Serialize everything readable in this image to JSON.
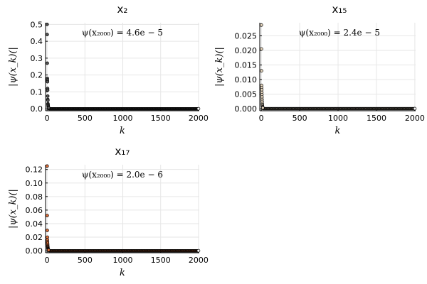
{
  "chart_data": [
    {
      "type": "scatter",
      "title": "x₂",
      "xlabel": "k",
      "ylabel": "|ψ(x_k)(|",
      "annotation": "ψ(x₂₀₀₀) = 4.6e − 5",
      "xlim": [
        -20,
        2010
      ],
      "ylim": [
        -0.012,
        0.51
      ],
      "xticks": [
        0,
        500,
        1000,
        1500,
        2000
      ],
      "xtick_labels": [
        "0",
        "500",
        "1000",
        "1500",
        "2000"
      ],
      "yticks": [
        0.0,
        0.1,
        0.2,
        0.3,
        0.4,
        0.5
      ],
      "ytick_labels": [
        "0.0",
        "0.1",
        "0.2",
        "0.3",
        "0.4",
        "0.5"
      ],
      "grid": true,
      "marker_color": "#555555",
      "highlight_points": [
        [
          1,
          0.5
        ],
        [
          2,
          0.44
        ],
        [
          3,
          0.27
        ],
        [
          4,
          0.18
        ],
        [
          5,
          0.17
        ],
        [
          6,
          0.16
        ],
        [
          7,
          0.12
        ],
        [
          8,
          0.11
        ],
        [
          9,
          0.075
        ],
        [
          10,
          0.055
        ],
        [
          11,
          0.05
        ],
        [
          12,
          0.03
        ],
        [
          13,
          0.025
        ],
        [
          14,
          0.02
        ],
        [
          15,
          0.015
        ],
        [
          16,
          0.01
        ],
        [
          18,
          0.008
        ],
        [
          20,
          0.006
        ]
      ],
      "tail_start": 22,
      "tail_end": 2000,
      "tail_value": 5e-05
    },
    {
      "type": "scatter",
      "title": "x₁₅",
      "xlabel": "k",
      "ylabel": "|ψ(x_k)(|",
      "annotation": "ψ(x₂₀₀₀) = 2.4e − 5",
      "xlim": [
        -20,
        2010
      ],
      "ylim": [
        -0.0007,
        0.0295
      ],
      "xticks": [
        0,
        500,
        1000,
        1500,
        2000
      ],
      "xtick_labels": [
        "0",
        "500",
        "1000",
        "1500",
        "2000"
      ],
      "yticks": [
        0.0,
        0.005,
        0.01,
        0.015,
        0.02,
        0.025
      ],
      "ytick_labels": [
        "0.000",
        "0.005",
        "0.010",
        "0.015",
        "0.020",
        "0.025"
      ],
      "grid": true,
      "marker_color": "#e8d8c0",
      "highlight_points": [
        [
          1,
          0.0287
        ],
        [
          2,
          0.0205
        ],
        [
          3,
          0.013
        ],
        [
          4,
          0.008
        ],
        [
          5,
          0.0072
        ],
        [
          6,
          0.0065
        ],
        [
          7,
          0.0056
        ],
        [
          8,
          0.0048
        ],
        [
          9,
          0.004
        ],
        [
          10,
          0.0032
        ],
        [
          11,
          0.0025
        ],
        [
          12,
          0.0018
        ],
        [
          13,
          0.0014
        ],
        [
          14,
          0.001
        ],
        [
          16,
          0.0007
        ],
        [
          18,
          0.0005
        ],
        [
          20,
          0.0003
        ]
      ],
      "tail_start": 22,
      "tail_end": 2000,
      "tail_value": 2.4e-05
    },
    {
      "type": "scatter",
      "title": "x₁₇",
      "xlabel": "k",
      "ylabel": "|ψ(x_k)(|",
      "annotation": "ψ(x₂₀₀₀) = 2.0e − 6",
      "xlim": [
        -20,
        2010
      ],
      "ylim": [
        -0.003,
        0.127
      ],
      "xticks": [
        0,
        500,
        1000,
        1500,
        2000
      ],
      "xtick_labels": [
        "0",
        "500",
        "1000",
        "1500",
        "2000"
      ],
      "yticks": [
        0.0,
        0.02,
        0.04,
        0.06,
        0.08,
        0.1,
        0.12
      ],
      "ytick_labels": [
        "0.00",
        "0.02",
        "0.04",
        "0.06",
        "0.08",
        "0.10",
        "0.12"
      ],
      "grid": true,
      "marker_color": "#e0703a",
      "highlight_points": [
        [
          1,
          0.125
        ],
        [
          2,
          0.052
        ],
        [
          3,
          0.03
        ],
        [
          4,
          0.02
        ],
        [
          5,
          0.016
        ],
        [
          6,
          0.013
        ],
        [
          7,
          0.011
        ],
        [
          8,
          0.009
        ],
        [
          9,
          0.007
        ],
        [
          10,
          0.006
        ],
        [
          11,
          0.005
        ],
        [
          12,
          0.004
        ],
        [
          13,
          0.003
        ],
        [
          14,
          0.0025
        ],
        [
          16,
          0.002
        ],
        [
          18,
          0.0015
        ],
        [
          20,
          0.001
        ]
      ],
      "tail_start": 22,
      "tail_end": 2000,
      "tail_value": 2e-06
    }
  ]
}
